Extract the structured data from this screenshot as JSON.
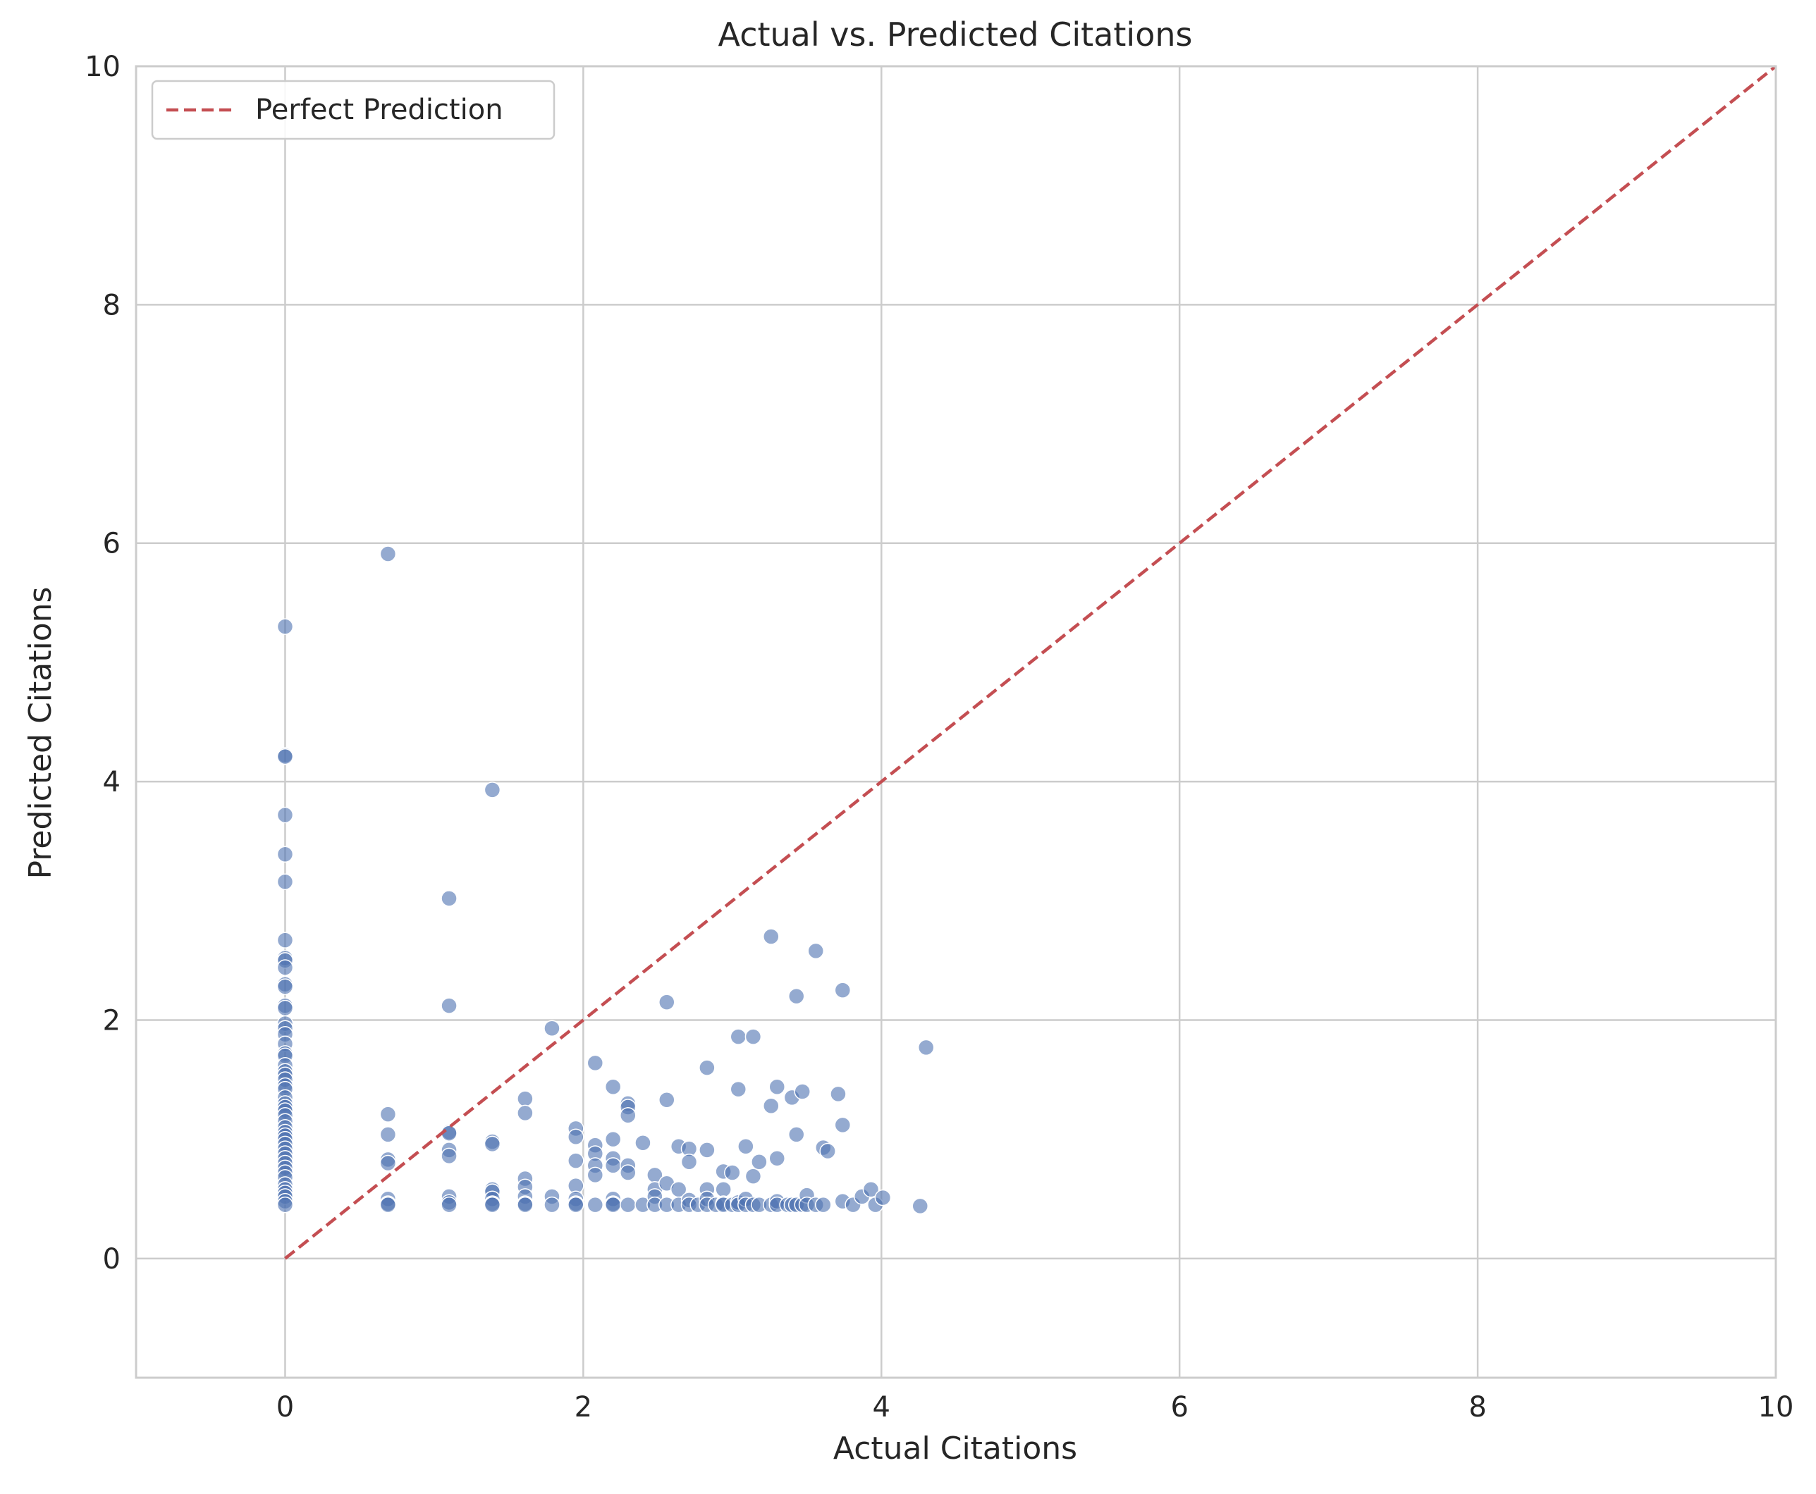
{
  "chart_data": {
    "type": "scatter",
    "title": "Actual vs. Predicted Citations",
    "xlabel": "Actual Citations",
    "ylabel": "Predicted Citations",
    "xlim": [
      -1,
      10
    ],
    "ylim": [
      -1,
      10
    ],
    "xticks": [
      0,
      2,
      4,
      6,
      8,
      10
    ],
    "yticks": [
      0,
      2,
      4,
      6,
      8,
      10
    ],
    "grid": true,
    "legend": {
      "placement": "top-left",
      "entries": [
        "Perfect Prediction"
      ]
    },
    "colors": {
      "points": "#4c72b0",
      "reference_line": "#c44e52",
      "grid": "#cccccc",
      "frame": "#cccccc"
    },
    "reference_line": {
      "name": "Perfect Prediction",
      "style": "dashed",
      "x": [
        0,
        10
      ],
      "y": [
        0,
        10
      ]
    },
    "points": [
      [
        0,
        5.3
      ],
      [
        0,
        4.22
      ],
      [
        0,
        4.21
      ],
      [
        0,
        3.72
      ],
      [
        0,
        3.39
      ],
      [
        0,
        3.16
      ],
      [
        0,
        2.67
      ],
      [
        0,
        2.52
      ],
      [
        0,
        2.5
      ],
      [
        0,
        2.44
      ],
      [
        0,
        2.3
      ],
      [
        0,
        2.28
      ],
      [
        0,
        2.12
      ],
      [
        0,
        2.1
      ],
      [
        0,
        1.97
      ],
      [
        0,
        1.93
      ],
      [
        0,
        1.88
      ],
      [
        0,
        1.8
      ],
      [
        0,
        1.72
      ],
      [
        0,
        1.7
      ],
      [
        0,
        1.62
      ],
      [
        0,
        1.57
      ],
      [
        0,
        1.54
      ],
      [
        0,
        1.5
      ],
      [
        0,
        1.45
      ],
      [
        0,
        1.42
      ],
      [
        0,
        1.35
      ],
      [
        0,
        1.3
      ],
      [
        0,
        1.27
      ],
      [
        0,
        1.24
      ],
      [
        0,
        1.2
      ],
      [
        0,
        1.15
      ],
      [
        0,
        1.1
      ],
      [
        0,
        1.06
      ],
      [
        0,
        1.03
      ],
      [
        0,
        1.0
      ],
      [
        0,
        0.96
      ],
      [
        0,
        0.92
      ],
      [
        0,
        0.88
      ],
      [
        0,
        0.84
      ],
      [
        0,
        0.8
      ],
      [
        0,
        0.76
      ],
      [
        0,
        0.72
      ],
      [
        0,
        0.68
      ],
      [
        0,
        0.62
      ],
      [
        0,
        0.58
      ],
      [
        0,
        0.55
      ],
      [
        0,
        0.52
      ],
      [
        0,
        0.48
      ],
      [
        0,
        0.45
      ],
      [
        0.69,
        5.91
      ],
      [
        0.69,
        1.21
      ],
      [
        0.69,
        1.04
      ],
      [
        0.69,
        0.83
      ],
      [
        0.69,
        0.8
      ],
      [
        0.69,
        0.5
      ],
      [
        0.69,
        0.46
      ],
      [
        0.69,
        0.45
      ],
      [
        1.1,
        3.02
      ],
      [
        1.1,
        2.12
      ],
      [
        1.1,
        1.06
      ],
      [
        1.1,
        1.05
      ],
      [
        1.1,
        0.91
      ],
      [
        1.1,
        0.86
      ],
      [
        1.1,
        0.52
      ],
      [
        1.1,
        0.47
      ],
      [
        1.1,
        0.45
      ],
      [
        1.39,
        3.93
      ],
      [
        1.39,
        0.98
      ],
      [
        1.39,
        0.96
      ],
      [
        1.39,
        0.58
      ],
      [
        1.39,
        0.56
      ],
      [
        1.39,
        0.5
      ],
      [
        1.39,
        0.46
      ],
      [
        1.39,
        0.45
      ],
      [
        1.61,
        1.34
      ],
      [
        1.61,
        1.22
      ],
      [
        1.61,
        0.67
      ],
      [
        1.61,
        0.6
      ],
      [
        1.61,
        0.52
      ],
      [
        1.61,
        0.46
      ],
      [
        1.61,
        0.45
      ],
      [
        1.79,
        1.93
      ],
      [
        1.79,
        0.52
      ],
      [
        1.79,
        0.45
      ],
      [
        1.95,
        1.09
      ],
      [
        1.95,
        1.02
      ],
      [
        1.95,
        0.82
      ],
      [
        1.95,
        0.61
      ],
      [
        1.95,
        0.5
      ],
      [
        1.95,
        0.46
      ],
      [
        1.95,
        0.45
      ],
      [
        2.08,
        1.64
      ],
      [
        2.08,
        0.95
      ],
      [
        2.08,
        0.88
      ],
      [
        2.08,
        0.78
      ],
      [
        2.08,
        0.7
      ],
      [
        2.08,
        0.45
      ],
      [
        2.2,
        1.44
      ],
      [
        2.2,
        1.0
      ],
      [
        2.2,
        0.84
      ],
      [
        2.2,
        0.78
      ],
      [
        2.2,
        0.5
      ],
      [
        2.2,
        0.46
      ],
      [
        2.2,
        0.45
      ],
      [
        2.3,
        1.3
      ],
      [
        2.3,
        1.27
      ],
      [
        2.3,
        1.2
      ],
      [
        2.3,
        0.78
      ],
      [
        2.3,
        0.72
      ],
      [
        2.3,
        0.45
      ],
      [
        2.4,
        0.97
      ],
      [
        2.4,
        0.45
      ],
      [
        2.48,
        0.7
      ],
      [
        2.48,
        0.58
      ],
      [
        2.48,
        0.52
      ],
      [
        2.48,
        0.45
      ],
      [
        2.56,
        2.15
      ],
      [
        2.56,
        1.33
      ],
      [
        2.56,
        0.63
      ],
      [
        2.56,
        0.45
      ],
      [
        2.64,
        0.94
      ],
      [
        2.64,
        0.58
      ],
      [
        2.64,
        0.45
      ],
      [
        2.71,
        0.92
      ],
      [
        2.71,
        0.81
      ],
      [
        2.71,
        0.49
      ],
      [
        2.71,
        0.45
      ],
      [
        2.77,
        0.45
      ],
      [
        2.83,
        1.6
      ],
      [
        2.83,
        0.91
      ],
      [
        2.83,
        0.58
      ],
      [
        2.83,
        0.5
      ],
      [
        2.83,
        0.45
      ],
      [
        2.89,
        0.45
      ],
      [
        2.94,
        0.73
      ],
      [
        2.94,
        0.58
      ],
      [
        2.94,
        0.46
      ],
      [
        2.94,
        0.45
      ],
      [
        3.0,
        0.72
      ],
      [
        3.0,
        0.45
      ],
      [
        3.04,
        1.86
      ],
      [
        3.04,
        1.42
      ],
      [
        3.04,
        0.47
      ],
      [
        3.04,
        0.45
      ],
      [
        3.09,
        0.94
      ],
      [
        3.09,
        0.5
      ],
      [
        3.09,
        0.45
      ],
      [
        3.14,
        1.86
      ],
      [
        3.14,
        0.69
      ],
      [
        3.14,
        0.45
      ],
      [
        3.18,
        0.81
      ],
      [
        3.18,
        0.45
      ],
      [
        3.26,
        2.7
      ],
      [
        3.26,
        1.28
      ],
      [
        3.26,
        0.45
      ],
      [
        3.3,
        1.44
      ],
      [
        3.3,
        0.84
      ],
      [
        3.3,
        0.48
      ],
      [
        3.3,
        0.45
      ],
      [
        3.37,
        0.45
      ],
      [
        3.4,
        1.35
      ],
      [
        3.4,
        0.45
      ],
      [
        3.43,
        2.2
      ],
      [
        3.43,
        1.04
      ],
      [
        3.43,
        0.45
      ],
      [
        3.47,
        1.4
      ],
      [
        3.47,
        0.45
      ],
      [
        3.5,
        0.53
      ],
      [
        3.5,
        0.45
      ],
      [
        3.56,
        2.58
      ],
      [
        3.56,
        0.45
      ],
      [
        3.61,
        0.93
      ],
      [
        3.61,
        0.45
      ],
      [
        3.64,
        0.9
      ],
      [
        3.71,
        1.38
      ],
      [
        3.74,
        2.25
      ],
      [
        3.74,
        1.12
      ],
      [
        3.74,
        0.48
      ],
      [
        3.81,
        0.45
      ],
      [
        3.87,
        0.52
      ],
      [
        3.93,
        0.58
      ],
      [
        3.96,
        0.45
      ],
      [
        4.01,
        0.51
      ],
      [
        4.26,
        0.44
      ],
      [
        4.3,
        1.77
      ]
    ]
  }
}
